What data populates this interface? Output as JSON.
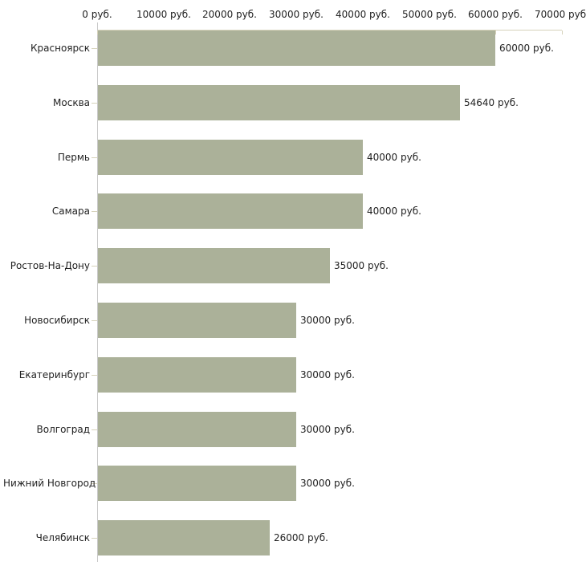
{
  "chart_data": {
    "type": "bar",
    "orientation": "horizontal",
    "title": "",
    "xlabel": "",
    "ylabel": "",
    "categories": [
      "Красноярск",
      "Москва",
      "Пермь",
      "Самара",
      "Ростов-На-Дону",
      "Новосибирск",
      "Екатеринбург",
      "Волгоград",
      "Нижний Новгород",
      "Челябинск"
    ],
    "values": [
      60000,
      54640,
      40000,
      40000,
      35000,
      30000,
      30000,
      30000,
      30000,
      26000
    ],
    "value_labels": [
      "60000 руб.",
      "54640 руб.",
      "40000 руб.",
      "40000 руб.",
      "35000 руб.",
      "30000 руб.",
      "30000 руб.",
      "30000 руб.",
      "30000 руб.",
      "26000 руб."
    ],
    "x_ticks": [
      0,
      10000,
      20000,
      30000,
      40000,
      50000,
      60000,
      70000
    ],
    "x_tick_labels": [
      "0 руб.",
      "10000 руб.",
      "20000 руб.",
      "30000 руб.",
      "40000 руб.",
      "50000 руб.",
      "60000 руб.",
      "70000 руб."
    ],
    "xlim": [
      0,
      70000
    ],
    "grid": false,
    "legend": "none",
    "colors": {
      "bar": "#abb199",
      "x_axis_line": "#d6d2ba",
      "y_axis_line": "#c9c9c9",
      "x_tick_mark": "#d6d2ba",
      "cat_tick_mark": "#d6d2ba",
      "text": "#222222",
      "background": "#ffffff"
    }
  }
}
